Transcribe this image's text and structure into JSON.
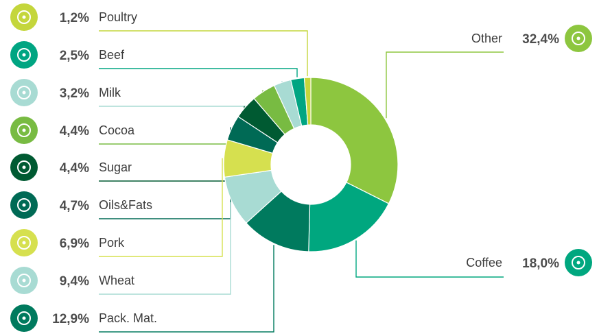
{
  "chart_data": {
    "type": "pie",
    "style": "donut",
    "slices": [
      {
        "name": "Other",
        "value": 32.4,
        "label": "32,4%",
        "color": "#8dc63f",
        "icon": "sparkle-icon"
      },
      {
        "name": "Coffee",
        "value": 18.0,
        "label": "18,0%",
        "color": "#00a77f",
        "icon": "coffee-bean-icon"
      },
      {
        "name": "Pack. Mat.",
        "value": 12.9,
        "label": "12,9%",
        "color": "#007a5e",
        "icon": "box-icon"
      },
      {
        "name": "Wheat",
        "value": 9.4,
        "label": "9,4%",
        "color": "#a8dbd3",
        "icon": "wheat-icon"
      },
      {
        "name": "Pork",
        "value": 6.9,
        "label": "6,9%",
        "color": "#d6e04f",
        "icon": "pig-icon"
      },
      {
        "name": "Oils&Fats",
        "value": 4.7,
        "label": "4,7%",
        "color": "#006a55",
        "icon": "bottle-icon"
      },
      {
        "name": "Sugar",
        "value": 4.4,
        "label": "4,4%",
        "color": "#005a32",
        "icon": "sugar-icon"
      },
      {
        "name": "Cocoa",
        "value": 4.4,
        "label": "4,4%",
        "color": "#78bb42",
        "icon": "cocoa-bean-icon"
      },
      {
        "name": "Milk",
        "value": 3.2,
        "label": "3,2%",
        "color": "#a8dbd3",
        "icon": "milk-bottle-icon"
      },
      {
        "name": "Beef",
        "value": 2.5,
        "label": "2,5%",
        "color": "#00a582",
        "icon": "cow-icon"
      },
      {
        "name": "Poultry",
        "value": 1.2,
        "label": "1,2%",
        "color": "#c4d63c",
        "icon": "chicken-leg-icon"
      }
    ]
  }
}
